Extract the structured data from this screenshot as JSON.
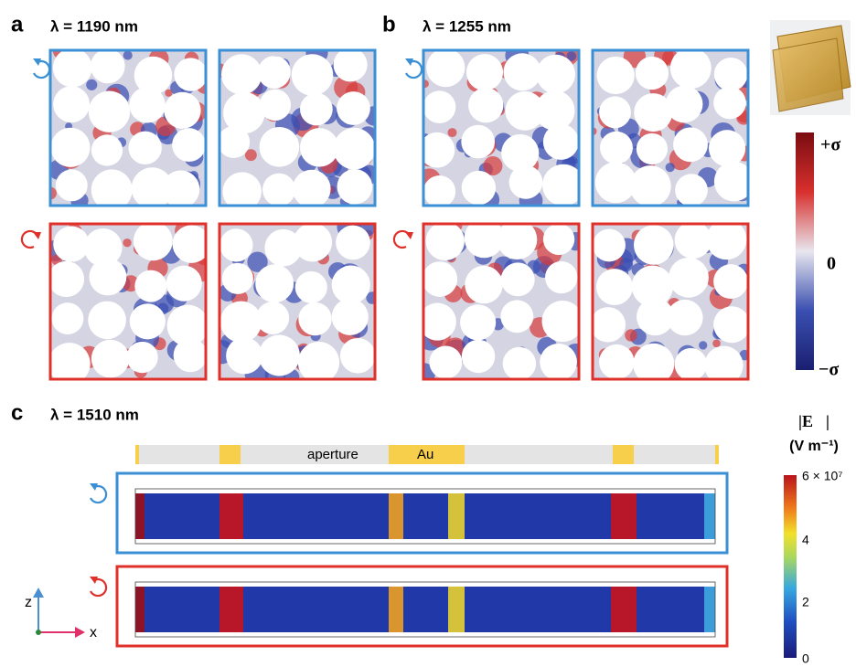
{
  "panel_a": {
    "label": "a",
    "wavelength": "λ = 1190 nm"
  },
  "panel_b": {
    "label": "b",
    "wavelength": "λ = 1255 nm"
  },
  "charge_colorbar": {
    "top": "+σ",
    "middle": "0",
    "bottom": "−σ"
  },
  "panel_c": {
    "label": "c",
    "wavelength": "λ = 1510 nm",
    "aperture": "aperture",
    "gold": "Au",
    "axis_z": "z",
    "axis_x": "x"
  },
  "field_colorbar": {
    "title": "|E⃗|",
    "unit": "(V m⁻¹)",
    "ticks": [
      "6 × 10⁷",
      "4",
      "2",
      "0"
    ]
  }
}
